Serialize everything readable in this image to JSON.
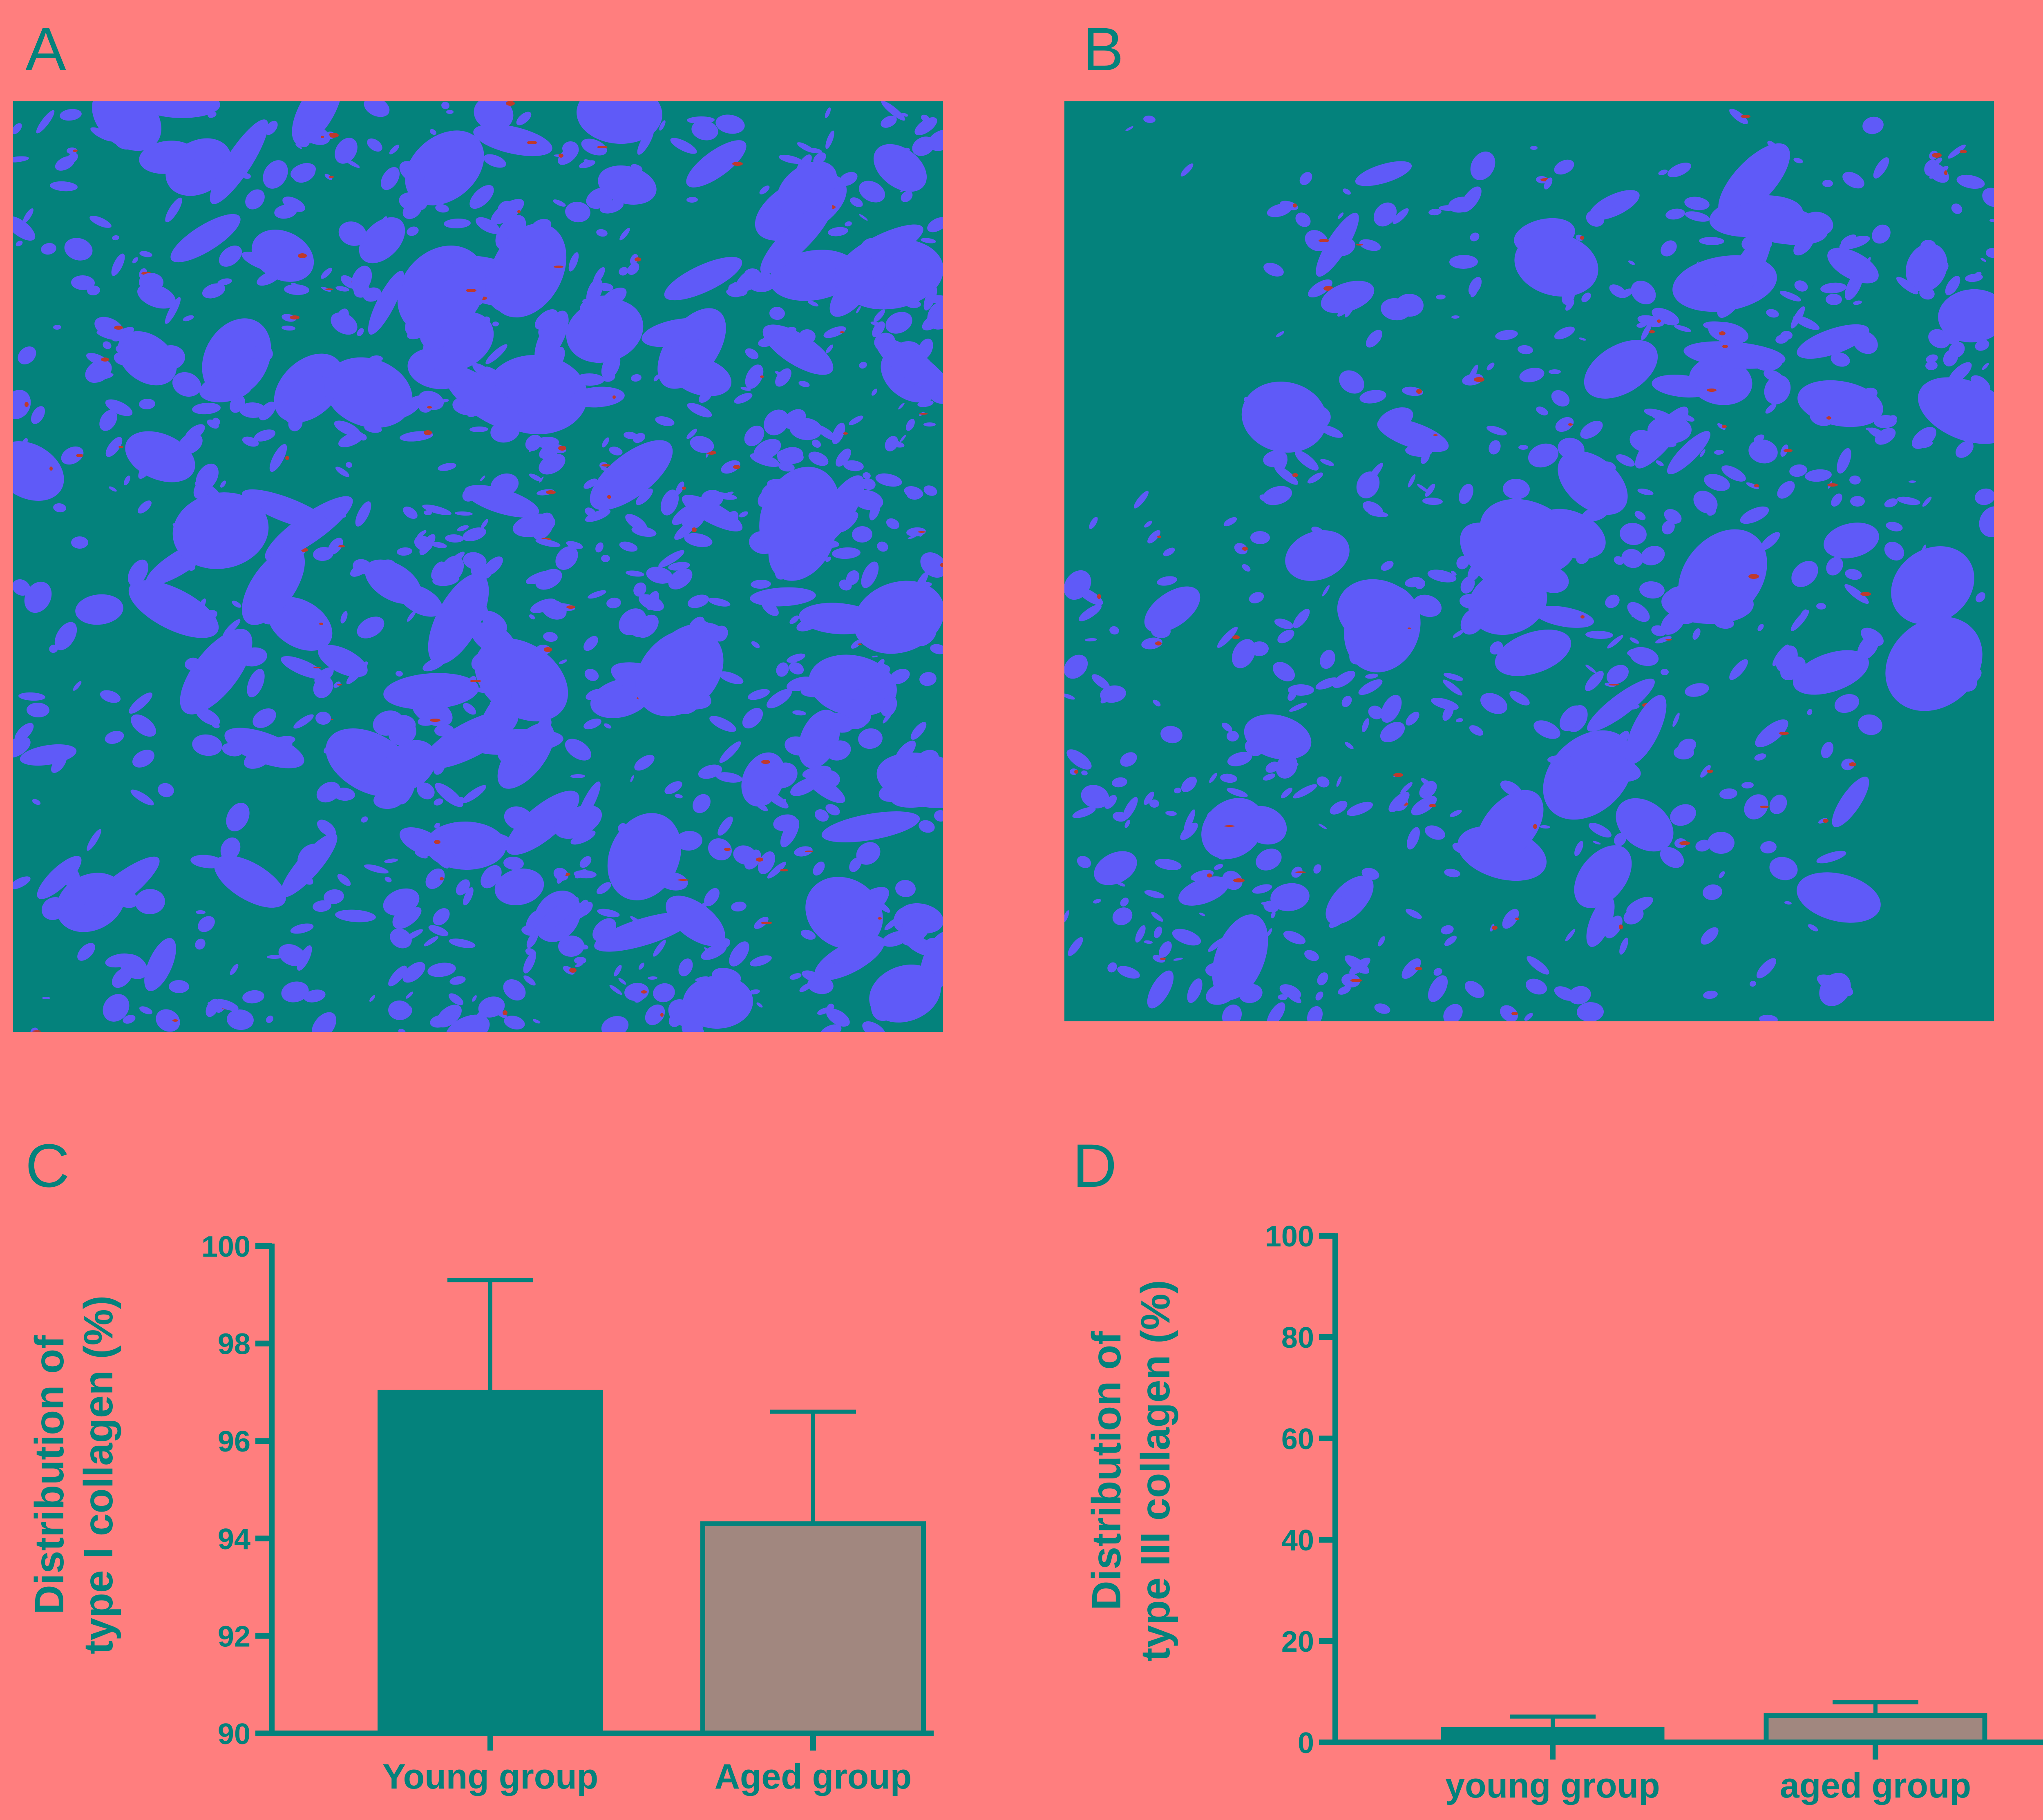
{
  "panels": {
    "a": {
      "letter": "A"
    },
    "b": {
      "letter": "B"
    },
    "c": {
      "letter": "C"
    },
    "d": {
      "letter": "D"
    }
  },
  "colors": {
    "background": "#ff7e7e",
    "tissue_background": "#04827c",
    "collagen_type_i": "#5f5af8",
    "collagen_type_iii": "#c0392b",
    "young_bar": "#04827c",
    "aged_bar": "#a1877f",
    "axis": "#04827c"
  },
  "chart_data": [
    {
      "panel": "C",
      "type": "bar",
      "categories": [
        "Young group",
        "Aged group"
      ],
      "values": [
        97.0,
        94.3
      ],
      "errors": [
        2.3,
        2.3
      ],
      "xlabel": "",
      "ylabel_line1": "Distribution of",
      "ylabel_line2": "type I collagen (%)",
      "ylim": [
        90,
        100
      ],
      "yticks": [
        90,
        92,
        94,
        96,
        98,
        100
      ],
      "bar_colors": [
        "#04827c",
        "#a1877f"
      ],
      "grid": false,
      "legend": "none"
    },
    {
      "panel": "D",
      "type": "bar",
      "categories": [
        "young group",
        "aged group"
      ],
      "values": [
        2.5,
        5.3
      ],
      "errors": [
        2.6,
        2.6
      ],
      "xlabel": "",
      "ylabel_line1": "Distribution of",
      "ylabel_line2": "type III collagen (%)",
      "ylim": [
        0,
        100
      ],
      "yticks": [
        0,
        20,
        40,
        60,
        80,
        100
      ],
      "bar_colors": [
        "#04827c",
        "#a1877f"
      ],
      "grid": false,
      "legend": "none"
    }
  ]
}
